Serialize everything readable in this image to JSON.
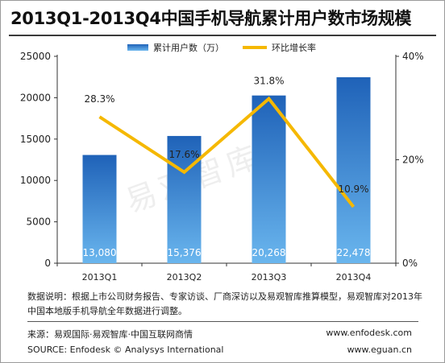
{
  "header": {
    "title": "2013Q1-2013Q4中国手机导航累计用户数市场规模"
  },
  "watermark": "易观智库",
  "chart_data": {
    "type": "bar",
    "categories": [
      "2013Q1",
      "2013Q2",
      "2013Q3",
      "2013Q4"
    ],
    "series": [
      {
        "name": "累计用户数（万）",
        "type": "bar",
        "axis": "left",
        "values": [
          13080,
          15376,
          20268,
          22478
        ],
        "labels": [
          "13,080",
          "15,376",
          "20,268",
          "22,478"
        ],
        "color": "#2f7ec9"
      },
      {
        "name": "环比增长率",
        "type": "line",
        "axis": "right",
        "values": [
          28.3,
          17.6,
          31.8,
          10.9
        ],
        "labels": [
          "28.3%",
          "17.6%",
          "31.8%",
          "10.9%"
        ],
        "color": "#f5b800"
      }
    ],
    "y_left": {
      "ylim": [
        0,
        25000
      ],
      "ticks": [
        "0",
        "5000",
        "10000",
        "15000",
        "20000",
        "25000"
      ]
    },
    "y_right": {
      "ylim": [
        0,
        40
      ],
      "ticks": [
        "0%",
        "20%",
        "40%"
      ]
    },
    "legend": "top-center",
    "grid": false
  },
  "footnote": {
    "note": "数据说明：根据上市公司财务报告、专家访谈、厂商深访以及易观智库推算模型，易观智库对2013年中国本地版手机导航全年数据进行调整。",
    "source_cn": "来源：易观国际·易观智库·中国互联网商情",
    "source_en": "SOURCE: Enfodesk © Analysys International",
    "url1": "www.enfodesk.com",
    "url2": "www.eguan.cn"
  }
}
